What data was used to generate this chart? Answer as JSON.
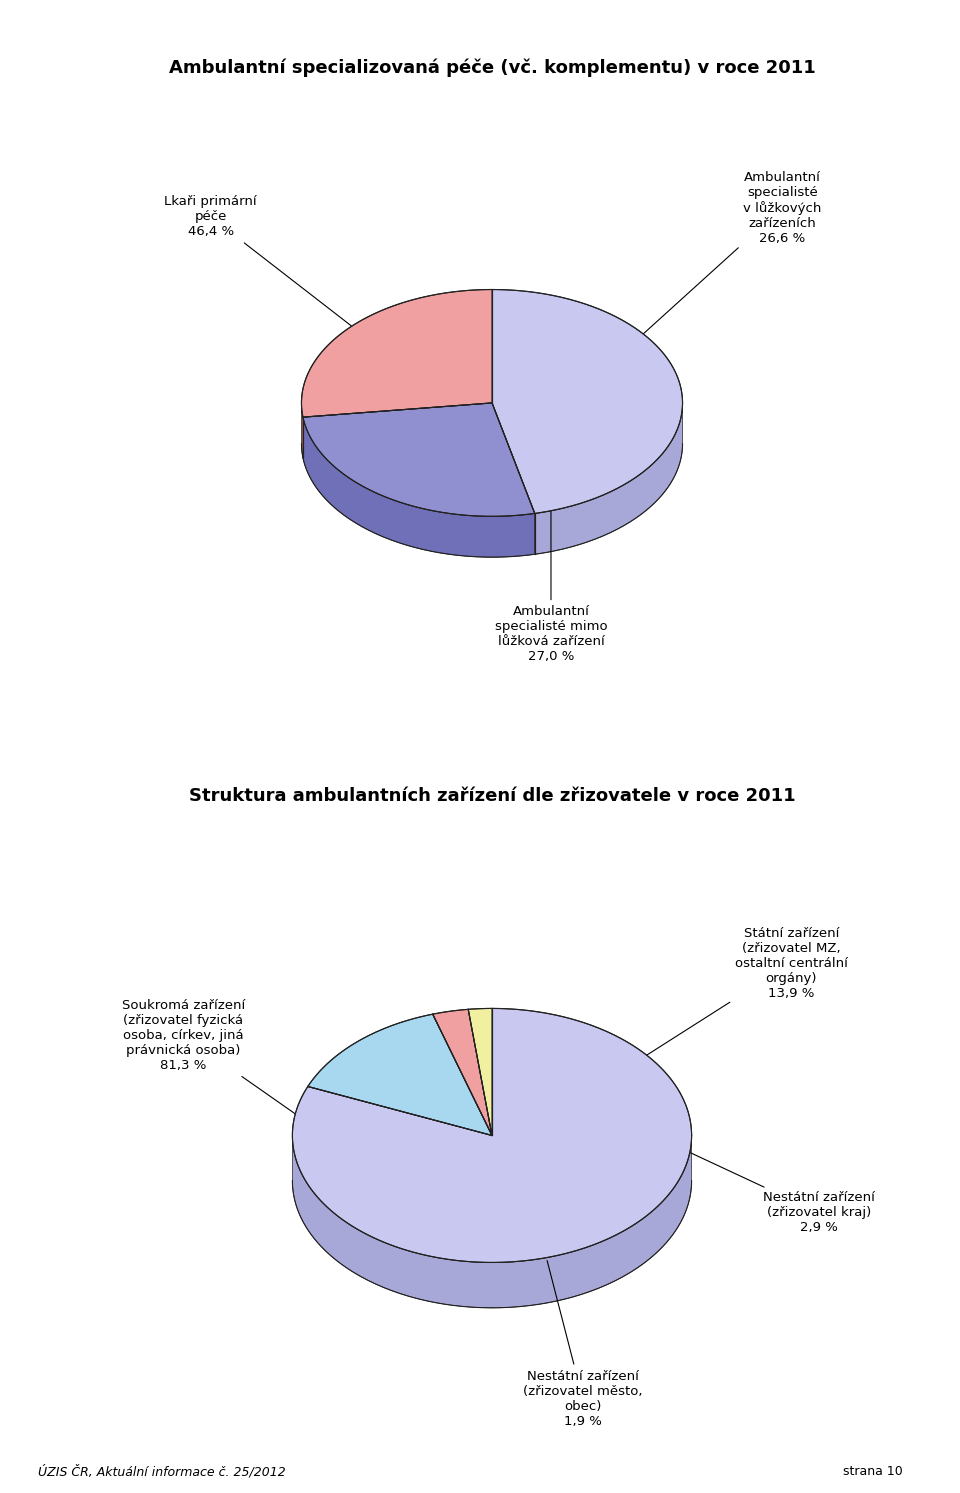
{
  "chart1": {
    "title": "Ambulantní specializovaná péče (vč. komplementu) v roce 2011",
    "slices": [
      46.4,
      26.6,
      27.0
    ],
    "colors_top": [
      "#c8c8f0",
      "#9090d0",
      "#f0a0a0"
    ],
    "colors_side": [
      "#a8a8d8",
      "#7070b8",
      "#d07070"
    ],
    "labels": [
      "Lkaři primární\npéče\n46,4 %",
      "Ambulantní\nspecialisté\nv lůžkových\nzařízeních\n26,6 %",
      "Ambulantní\nspecialisté mimo\nlůžková zařízení\n27,0 %"
    ],
    "start_angle": 90,
    "depth": 0.09
  },
  "chart2": {
    "title": "Struktura ambulantních zařízení dle zřizovatele v roce 2011",
    "slices": [
      81.3,
      13.9,
      2.9,
      1.9
    ],
    "colors_top": [
      "#c8c8f0",
      "#a8d8f0",
      "#f0a0a0",
      "#f0f0a0"
    ],
    "colors_side": [
      "#a8a8d8",
      "#88b8d8",
      "#d07070",
      "#d0d080"
    ],
    "labels": [
      "Soukromá zařízení\n(zřizovatel fyzická\nosoba, církev, jiná\nprávnická osoba)\n81,3 %",
      "Státní zařízení\n(zřizovatel MZ,\nostaltní centrální\norgány)\n13,9 %",
      "Nestátní zařízení\n(zřizovatel kraj)\n2,9 %",
      "Nestátní zařízení\n(zřizovatel město,\nobec)\n1,9 %"
    ],
    "start_angle": 90,
    "depth": 0.1
  },
  "footer_left": "ÚZIS ČR, Aktuální informace č. 25/2012",
  "footer_right": "strana 10",
  "background_color": "#ffffff"
}
